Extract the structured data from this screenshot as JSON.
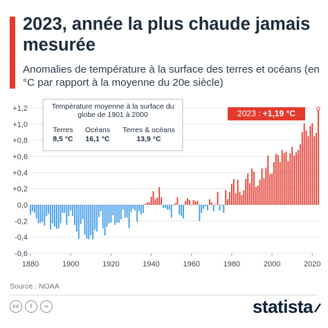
{
  "header": {
    "title": "2023, année la plus chaude jamais mesurée",
    "subtitle": "Anomalies de température à la surface des terres et océans (en °C par rapport à la moyenne du 20e siècle)"
  },
  "info_box": {
    "title": "Température moyenne à la surface du globe de 1901 à 2000",
    "columns": [
      {
        "label": "Terres",
        "value": "8,5 °C"
      },
      {
        "label": "Océans",
        "value": "16,1 °C"
      },
      {
        "label": "Terres & océans",
        "value": "13,9 °C"
      }
    ]
  },
  "callout": {
    "year": "2023",
    "separator": " : ",
    "value": "+1,19 °C"
  },
  "source": "Source : NOAA",
  "footer": {
    "logo": "statista",
    "license_icons": [
      "cc-icon",
      "info-icon",
      "equals-icon"
    ]
  },
  "colors": {
    "negative": "#3d9be9",
    "positive": "#e23b2e",
    "accent": "#e23b2e",
    "grid": "#e3e6e9",
    "text": "#1f2d3d"
  },
  "chart_data": {
    "type": "bar",
    "title": "2023, année la plus chaude jamais mesurée",
    "xlabel": "",
    "ylabel": "",
    "ylim": [
      -0.6,
      1.2
    ],
    "xlim": [
      1880,
      2023
    ],
    "yticks": [
      1.2,
      1.0,
      0.8,
      0.6,
      0.4,
      0.2,
      0.0,
      -0.2,
      -0.4,
      -0.6
    ],
    "ytick_labels": [
      "+1,2",
      "+1,0",
      "+0,8",
      "+0,6",
      "+0,4",
      "+0,2",
      "0,0",
      "-0,2",
      "-0,4",
      "-0,6"
    ],
    "xticks": [
      1880,
      1900,
      1920,
      1940,
      1960,
      1980,
      2000,
      2020
    ],
    "xtick_labels": [
      "1880",
      "1900",
      "1920",
      "1940",
      "1960",
      "1980",
      "2000",
      "2020"
    ],
    "grid": true,
    "legend": "none",
    "years": [
      1880,
      1881,
      1882,
      1883,
      1884,
      1885,
      1886,
      1887,
      1888,
      1889,
      1890,
      1891,
      1892,
      1893,
      1894,
      1895,
      1896,
      1897,
      1898,
      1899,
      1900,
      1901,
      1902,
      1903,
      1904,
      1905,
      1906,
      1907,
      1908,
      1909,
      1910,
      1911,
      1912,
      1913,
      1914,
      1915,
      1916,
      1917,
      1918,
      1919,
      1920,
      1921,
      1922,
      1923,
      1924,
      1925,
      1926,
      1927,
      1928,
      1929,
      1930,
      1931,
      1932,
      1933,
      1934,
      1935,
      1936,
      1937,
      1938,
      1939,
      1940,
      1941,
      1942,
      1943,
      1944,
      1945,
      1946,
      1947,
      1948,
      1949,
      1950,
      1951,
      1952,
      1953,
      1954,
      1955,
      1956,
      1957,
      1958,
      1959,
      1960,
      1961,
      1962,
      1963,
      1964,
      1965,
      1966,
      1967,
      1968,
      1969,
      1970,
      1971,
      1972,
      1973,
      1974,
      1975,
      1976,
      1977,
      1978,
      1979,
      1980,
      1981,
      1982,
      1983,
      1984,
      1985,
      1986,
      1987,
      1988,
      1989,
      1990,
      1991,
      1992,
      1993,
      1994,
      1995,
      1996,
      1997,
      1998,
      1999,
      2000,
      2001,
      2002,
      2003,
      2004,
      2005,
      2006,
      2007,
      2008,
      2009,
      2010,
      2011,
      2012,
      2013,
      2014,
      2015,
      2016,
      2017,
      2018,
      2019,
      2020,
      2021,
      2022,
      2023
    ],
    "values": [
      -0.12,
      -0.08,
      -0.1,
      -0.17,
      -0.23,
      -0.22,
      -0.21,
      -0.26,
      -0.14,
      -0.11,
      -0.31,
      -0.23,
      -0.27,
      -0.3,
      -0.29,
      -0.23,
      -0.1,
      -0.1,
      -0.25,
      -0.14,
      -0.07,
      -0.14,
      -0.25,
      -0.33,
      -0.42,
      -0.24,
      -0.18,
      -0.37,
      -0.42,
      -0.43,
      -0.38,
      -0.43,
      -0.31,
      -0.33,
      -0.15,
      -0.08,
      -0.29,
      -0.38,
      -0.27,
      -0.23,
      -0.22,
      -0.13,
      -0.25,
      -0.22,
      -0.22,
      -0.18,
      -0.06,
      -0.16,
      -0.16,
      -0.29,
      -0.09,
      -0.05,
      -0.07,
      -0.21,
      -0.08,
      -0.12,
      -0.1,
      0.01,
      0.03,
      0.03,
      0.1,
      0.17,
      0.07,
      0.09,
      0.22,
      0.09,
      -0.04,
      -0.04,
      -0.06,
      -0.06,
      -0.16,
      -0.01,
      0.02,
      0.09,
      -0.12,
      -0.14,
      -0.17,
      0.05,
      0.08,
      0.06,
      -0.01,
      0.06,
      0.04,
      0.05,
      -0.2,
      -0.1,
      -0.05,
      -0.02,
      -0.07,
      0.07,
      0.03,
      -0.08,
      0.01,
      0.16,
      -0.07,
      -0.01,
      -0.1,
      0.18,
      0.07,
      0.16,
      0.26,
      0.32,
      0.14,
      0.31,
      0.16,
      0.12,
      0.18,
      0.32,
      0.39,
      0.27,
      0.45,
      0.41,
      0.22,
      0.24,
      0.31,
      0.45,
      0.33,
      0.46,
      0.61,
      0.38,
      0.39,
      0.53,
      0.63,
      0.62,
      0.53,
      0.68,
      0.64,
      0.66,
      0.54,
      0.64,
      0.72,
      0.61,
      0.65,
      0.68,
      0.75,
      0.9,
      1.01,
      0.92,
      0.85,
      0.98,
      1.01,
      0.85,
      0.89,
      1.19
    ]
  }
}
